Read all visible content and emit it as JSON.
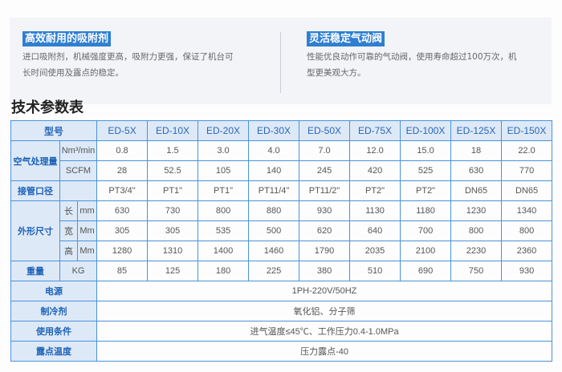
{
  "features": [
    {
      "title": "高效耐用的吸附剂",
      "desc": [
        "进口吸附剂，机械强度更高，吸附力更强，保证了机台可",
        "长时间使用及露点的稳定。"
      ]
    },
    {
      "title": "灵活稳定气动阀",
      "desc": [
        "性能优良动作可靠的气动阀，使用寿命超过100万次，机",
        "型更美观大方。"
      ]
    }
  ],
  "section_title": "技术参数表",
  "table": {
    "model_label": "型号",
    "models": [
      "ED-5X",
      "ED-10X",
      "ED-20X",
      "ED-30X",
      "ED-50X",
      "ED-75X",
      "ED-100X",
      "ED-125X",
      "ED-150X"
    ],
    "air_label": "空气处理量",
    "nm_unit": "Nm³/min",
    "nm": [
      "0.8",
      "1.5",
      "3.0",
      "4.0",
      "7.0",
      "12.0",
      "15.0",
      "18",
      "22.0"
    ],
    "scfm_unit": "SCFM",
    "scfm": [
      "28",
      "52.5",
      "105",
      "140",
      "245",
      "420",
      "525",
      "630",
      "770"
    ],
    "pipe_label": "接管口径",
    "pipe": [
      "PT3/4\"",
      "PT1\"",
      "PT1\"",
      "PT11/4\"",
      "PT11/2\"",
      "PT2\"",
      "PT2\"",
      "DN65",
      "DN65"
    ],
    "dim_label": "外形尺寸",
    "len_label": "长",
    "len_unit": "mm",
    "len": [
      "630",
      "730",
      "800",
      "880",
      "930",
      "1130",
      "1180",
      "1230",
      "1340"
    ],
    "wid_label": "宽",
    "wid_unit": "Mm",
    "wid": [
      "305",
      "305",
      "535",
      "500",
      "620",
      "640",
      "700",
      "800",
      "800"
    ],
    "hei_label": "高",
    "hei_unit": "Mm",
    "hei": [
      "1280",
      "1310",
      "1400",
      "1460",
      "1790",
      "2035",
      "2100",
      "2230",
      "2360"
    ],
    "weight_label": "重量",
    "weight_unit": "KG",
    "weight": [
      "85",
      "125",
      "180",
      "225",
      "380",
      "510",
      "690",
      "750",
      "930"
    ],
    "power_label": "电源",
    "power": "1PH-220V/50HZ",
    "refrig_label": "制冷剂",
    "refrig": "氧化铝、分子筛",
    "cond_label": "使用条件",
    "cond": "进气温度≤45℃、工作压力0.4-1.0MPa",
    "dew_label": "露点温度",
    "dew": "压力露点-40"
  },
  "colors": {
    "accent": "#2f7fd1",
    "border": "#4a93da",
    "label_bg": "#dde9f7"
  }
}
